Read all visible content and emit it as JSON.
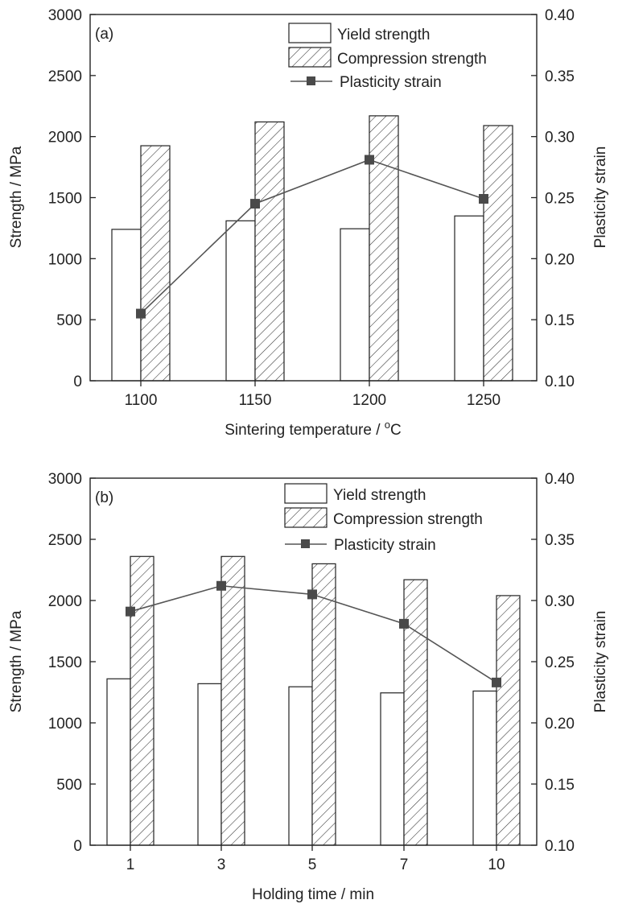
{
  "chart_data": [
    {
      "type": "bar",
      "panel_label": "(a)",
      "xlabel": "Sintering temperature / ",
      "xlabel_unit_sup": "o",
      "xlabel_unit": "C",
      "ylabel": "Strength / MPa",
      "y2label": "Plasticity strain",
      "ylim": [
        0,
        3000
      ],
      "y2lim": [
        0.1,
        0.4
      ],
      "yticks": [
        "0",
        "500",
        "1000",
        "1500",
        "2000",
        "2500",
        "3000"
      ],
      "y2ticks": [
        "0.10",
        "0.15",
        "0.20",
        "0.25",
        "0.30",
        "0.35",
        "0.40"
      ],
      "categories": [
        "1100",
        "1150",
        "1200",
        "1250"
      ],
      "series": [
        {
          "name": "Yield strength",
          "type": "bar",
          "pattern": "open",
          "values": [
            1240,
            1310,
            1245,
            1350
          ]
        },
        {
          "name": "Compression strength",
          "type": "bar",
          "pattern": "hatched",
          "values": [
            1925,
            2120,
            2170,
            2090
          ]
        },
        {
          "name": "Plasticity strain",
          "type": "line",
          "axis": "right",
          "marker": "square",
          "values": [
            0.155,
            0.245,
            0.281,
            0.249
          ]
        }
      ],
      "legend_position": "top-right",
      "grid": false
    },
    {
      "type": "bar",
      "panel_label": "(b)",
      "xlabel": "Holding time / min",
      "ylabel": "Strength / MPa",
      "y2label": "Plasticity strain",
      "ylim": [
        0,
        3000
      ],
      "y2lim": [
        0.1,
        0.4
      ],
      "yticks": [
        "0",
        "500",
        "1000",
        "1500",
        "2000",
        "2500",
        "3000"
      ],
      "y2ticks": [
        "0.10",
        "0.15",
        "0.20",
        "0.25",
        "0.30",
        "0.35",
        "0.40"
      ],
      "categories": [
        "1",
        "3",
        "5",
        "7",
        "10"
      ],
      "series": [
        {
          "name": "Yield strength",
          "type": "bar",
          "pattern": "open",
          "values": [
            1360,
            1320,
            1295,
            1245,
            1260
          ]
        },
        {
          "name": "Compression strength",
          "type": "bar",
          "pattern": "hatched",
          "values": [
            2360,
            2360,
            2300,
            2170,
            2040
          ]
        },
        {
          "name": "Plasticity strain",
          "type": "line",
          "axis": "right",
          "marker": "square",
          "values": [
            0.291,
            0.312,
            0.305,
            0.281,
            0.233
          ]
        }
      ],
      "legend_position": "top-right",
      "grid": false
    }
  ]
}
